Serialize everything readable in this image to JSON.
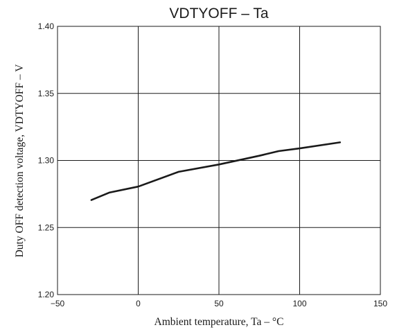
{
  "chart_data": {
    "type": "line",
    "title": "VDTYOFF  –  Ta",
    "xlabel": "Ambient temperature,  Ta  –  °C",
    "ylabel": "Duty OFF detection voltage, VDTYOFF  –  V",
    "xlim": [
      -50,
      150
    ],
    "ylim": [
      1.2,
      1.4
    ],
    "xticks": [
      -50,
      0,
      50,
      100,
      150
    ],
    "yticks": [
      1.2,
      1.25,
      1.3,
      1.35,
      1.4
    ],
    "xtick_labels": [
      "−50",
      "0",
      "50",
      "100",
      "150"
    ],
    "ytick_labels": [
      "1.20",
      "1.25",
      "1.30",
      "1.35",
      "1.40"
    ],
    "grid": true,
    "legend": "none",
    "series": [
      {
        "x": [
          -29,
          -18,
          0,
          25,
          50,
          75,
          87,
          100,
          125
        ],
        "y": [
          1.2705,
          1.276,
          1.2805,
          1.2915,
          1.297,
          1.3035,
          1.307,
          1.309,
          1.3135
        ]
      }
    ]
  }
}
